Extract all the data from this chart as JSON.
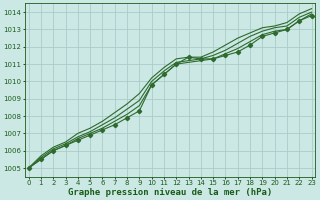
{
  "title": "Graphe pression niveau de la mer (hPa)",
  "bg_color": "#cce8e4",
  "grid_color": "#aaccc8",
  "line_color": "#2d6a2d",
  "text_color": "#1a5c1a",
  "xlim": [
    -0.3,
    23.3
  ],
  "ylim": [
    1004.5,
    1014.5
  ],
  "yticks": [
    1005,
    1006,
    1007,
    1008,
    1009,
    1010,
    1011,
    1012,
    1013,
    1014
  ],
  "xticks": [
    0,
    1,
    2,
    3,
    4,
    5,
    6,
    7,
    8,
    9,
    10,
    11,
    12,
    13,
    14,
    15,
    16,
    17,
    18,
    19,
    20,
    21,
    22,
    23
  ],
  "series": [
    [
      1005.0,
      1005.5,
      1006.0,
      1006.3,
      1006.6,
      1006.9,
      1007.2,
      1007.5,
      1007.9,
      1008.3,
      1009.8,
      1010.4,
      1011.0,
      1011.4,
      1011.3,
      1011.3,
      1011.5,
      1011.7,
      1012.1,
      1012.6,
      1012.8,
      1013.0,
      1013.5,
      1013.8
    ],
    [
      1005.0,
      1005.5,
      1006.0,
      1006.3,
      1006.7,
      1007.0,
      1007.3,
      1007.7,
      1008.1,
      1008.6,
      1009.8,
      1010.4,
      1011.0,
      1011.1,
      1011.2,
      1011.3,
      1011.6,
      1011.9,
      1012.3,
      1012.7,
      1012.9,
      1013.0,
      1013.5,
      1013.9
    ],
    [
      1005.0,
      1005.6,
      1006.1,
      1006.4,
      1006.8,
      1007.1,
      1007.5,
      1007.9,
      1008.4,
      1008.9,
      1010.0,
      1010.6,
      1011.1,
      1011.2,
      1011.3,
      1011.5,
      1011.8,
      1012.2,
      1012.6,
      1012.9,
      1013.1,
      1013.2,
      1013.7,
      1014.0
    ],
    [
      1005.0,
      1005.7,
      1006.2,
      1006.5,
      1007.0,
      1007.3,
      1007.7,
      1008.2,
      1008.7,
      1009.3,
      1010.2,
      1010.8,
      1011.3,
      1011.4,
      1011.4,
      1011.7,
      1012.1,
      1012.5,
      1012.8,
      1013.1,
      1013.2,
      1013.4,
      1013.9,
      1014.2
    ]
  ],
  "marker_series": [
    1,
    2,
    3
  ],
  "marker_style": "D",
  "marker_size": 2.2,
  "linewidth": 0.8,
  "title_fontsize": 6.5,
  "tick_fontsize": 5.0
}
